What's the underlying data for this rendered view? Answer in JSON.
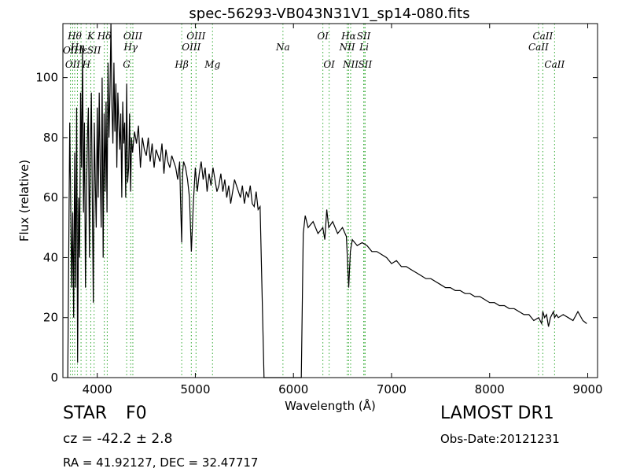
{
  "chart_data": {
    "type": "line",
    "title": "spec-56293-VB043N31V1_sp14-080.fits",
    "xlabel": "Wavelength (Å)",
    "ylabel": "Flux (relative)",
    "xlim": [
      3650,
      9100
    ],
    "ylim": [
      0,
      118
    ],
    "xticks": [
      4000,
      5000,
      6000,
      7000,
      8000,
      9000
    ],
    "yticks": [
      0,
      20,
      40,
      60,
      80,
      100
    ],
    "line_color": "#000000",
    "marker_line_color": "#33aa33",
    "series": [
      {
        "x": [
          3700,
          3720,
          3740,
          3750,
          3760,
          3770,
          3780,
          3790,
          3800,
          3810,
          3820,
          3830,
          3840,
          3850,
          3860,
          3870,
          3880,
          3890,
          3900,
          3910,
          3920,
          3930,
          3940,
          3950,
          3960,
          3970,
          3980,
          3990,
          4000,
          4010,
          4020,
          4030,
          4040,
          4050,
          4060,
          4070,
          4080,
          4090,
          4100,
          4110,
          4120,
          4130,
          4140,
          4150,
          4160,
          4170,
          4180,
          4190,
          4200,
          4210,
          4220,
          4230,
          4240,
          4250,
          4260,
          4270,
          4280,
          4290,
          4300,
          4310,
          4320,
          4330,
          4340,
          4350,
          4360,
          4380,
          4400,
          4420,
          4440,
          4460,
          4480,
          4500,
          4520,
          4540,
          4560,
          4580,
          4600,
          4620,
          4640,
          4660,
          4680,
          4700,
          4720,
          4740,
          4760,
          4780,
          4800,
          4820,
          4840,
          4850,
          4861,
          4870,
          4880,
          4900,
          4920,
          4940,
          4960,
          4980,
          5000,
          5020,
          5040,
          5060,
          5080,
          5100,
          5120,
          5140,
          5160,
          5180,
          5200,
          5220,
          5240,
          5260,
          5280,
          5300,
          5320,
          5340,
          5360,
          5380,
          5400,
          5420,
          5440,
          5460,
          5480,
          5500,
          5520,
          5540,
          5560,
          5580,
          5600,
          5620,
          5640,
          5660,
          5700,
          5800,
          5900,
          6000,
          6050,
          6080,
          6100,
          6120,
          6150,
          6200,
          6250,
          6300,
          6320,
          6340,
          6360,
          6400,
          6450,
          6500,
          6540,
          6563,
          6580,
          6600,
          6650,
          6700,
          6750,
          6800,
          6850,
          6900,
          6950,
          7000,
          7050,
          7100,
          7150,
          7200,
          7250,
          7300,
          7350,
          7400,
          7450,
          7500,
          7550,
          7600,
          7650,
          7700,
          7750,
          7800,
          7850,
          7900,
          7950,
          8000,
          8050,
          8100,
          8150,
          8200,
          8250,
          8300,
          8350,
          8400,
          8450,
          8500,
          8530,
          8542,
          8560,
          8580,
          8600,
          8620,
          8650,
          8662,
          8680,
          8700,
          8750,
          8800,
          8850,
          8900,
          8950,
          8990
        ],
        "y": [
          0,
          85,
          30,
          55,
          20,
          75,
          30,
          90,
          5,
          60,
          40,
          95,
          70,
          110,
          55,
          85,
          30,
          60,
          80,
          90,
          40,
          75,
          95,
          60,
          25,
          85,
          65,
          50,
          90,
          60,
          95,
          70,
          50,
          100,
          40,
          88,
          62,
          92,
          55,
          105,
          80,
          95,
          118,
          90,
          78,
          105,
          82,
          98,
          70,
          95,
          85,
          76,
          88,
          60,
          92,
          78,
          85,
          60,
          98,
          65,
          70,
          88,
          62,
          80,
          75,
          82,
          78,
          84,
          70,
          80,
          76,
          74,
          80,
          72,
          78,
          70,
          76,
          74,
          72,
          78,
          68,
          76,
          72,
          70,
          74,
          72,
          70,
          66,
          72,
          58,
          45,
          68,
          72,
          70,
          66,
          60,
          42,
          58,
          70,
          62,
          68,
          72,
          66,
          70,
          62,
          68,
          64,
          70,
          66,
          62,
          64,
          68,
          62,
          66,
          60,
          64,
          58,
          62,
          66,
          64,
          62,
          60,
          64,
          58,
          62,
          60,
          64,
          58,
          57,
          62,
          56,
          57,
          0,
          0,
          0,
          0,
          0,
          0,
          48,
          54,
          50,
          52,
          48,
          50,
          46,
          56,
          50,
          52,
          48,
          50,
          47,
          30,
          42,
          46,
          44,
          45,
          44,
          42,
          42,
          41,
          40,
          38,
          39,
          37,
          37,
          36,
          35,
          34,
          33,
          33,
          32,
          31,
          30,
          30,
          29,
          29,
          28,
          28,
          27,
          27,
          26,
          25,
          25,
          24,
          24,
          23,
          23,
          22,
          21,
          21,
          19,
          20,
          18,
          22,
          20,
          21,
          17,
          20,
          22,
          20,
          21,
          20,
          21,
          20,
          19,
          22,
          19,
          18
        ]
      }
    ],
    "line_markers": [
      {
        "x": 3727,
        "label": "OII",
        "row": 2
      },
      {
        "x": 3750,
        "label": "OII",
        "row": 4
      },
      {
        "x": 3770,
        "label": "Hθ",
        "row": 1
      },
      {
        "x": 3798,
        "label": "Hη",
        "row": 3
      },
      {
        "x": 3835,
        "label": "Hε",
        "row": 2
      },
      {
        "x": 3889,
        "label": "H",
        "row": 4
      },
      {
        "x": 3934,
        "label": "K",
        "row": 1
      },
      {
        "x": 3968,
        "label": "SII",
        "row": 2
      },
      {
        "x": 4072,
        "label": "Hδ",
        "row": 1
      },
      {
        "x": 4102,
        "label": "",
        "row": 0
      },
      {
        "x": 4300,
        "label": "G",
        "row": 4
      },
      {
        "x": 4341,
        "label": "Hγ",
        "row": 3
      },
      {
        "x": 4363,
        "label": "OIII",
        "row": 1
      },
      {
        "x": 4861,
        "label": "Hβ",
        "row": 4
      },
      {
        "x": 4959,
        "label": "OIII",
        "row": 3
      },
      {
        "x": 5007,
        "label": "OIII",
        "row": 1
      },
      {
        "x": 5175,
        "label": "Mg",
        "row": 4
      },
      {
        "x": 5893,
        "label": "Na",
        "row": 3
      },
      {
        "x": 6300,
        "label": "OI",
        "row": 1
      },
      {
        "x": 6364,
        "label": "OI",
        "row": 4
      },
      {
        "x": 6548,
        "label": "NII",
        "row": 3
      },
      {
        "x": 6563,
        "label": "Hα",
        "row": 1
      },
      {
        "x": 6583,
        "label": "NII",
        "row": 4
      },
      {
        "x": 6716,
        "label": "SII",
        "row": 1
      },
      {
        "x": 6720,
        "label": "Li",
        "row": 3
      },
      {
        "x": 6731,
        "label": "SII",
        "row": 4
      },
      {
        "x": 8498,
        "label": "CaII",
        "row": 3
      },
      {
        "x": 8542,
        "label": "CaII",
        "row": 1
      },
      {
        "x": 8662,
        "label": "CaII",
        "row": 4
      }
    ],
    "grid": false
  },
  "info": {
    "object_class": "STAR",
    "subclass": "F0",
    "redshift": "cz = -42.2 ± 2.8",
    "coords": "RA = 41.92127, DEC = 32.47717",
    "survey": "LAMOST DR1",
    "obs_date": "Obs-Date:20121231"
  }
}
